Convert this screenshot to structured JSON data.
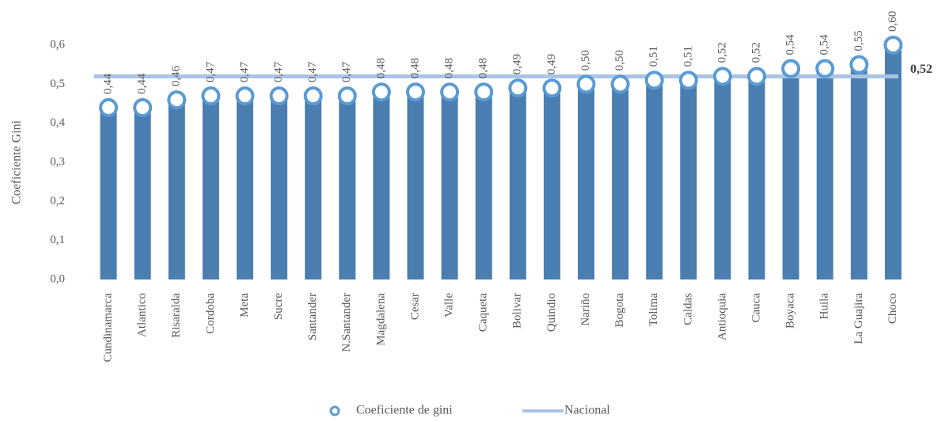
{
  "chart_data": {
    "type": "bar",
    "ylabel": "Coeficiente Gini",
    "categories": [
      "Cundinamarca",
      "Atlantico",
      "Risaralda",
      "Cordoba",
      "Meta",
      "Sucre",
      "Santander",
      "N.Santander",
      "Magdalena",
      "Cesar",
      "Valle",
      "Caqueta",
      "Bolivar",
      "Quindio",
      "Nariño",
      "Bogota",
      "Tolima",
      "Caldas",
      "Antioquia",
      "Cauca",
      "Boyaca",
      "Huila",
      "La Guajira",
      "Choco"
    ],
    "series": [
      {
        "name": "Coeficiente de gini",
        "color": "#4a7eb0",
        "marker_color": "#5b9bd5",
        "values": [
          0.44,
          0.44,
          0.46,
          0.47,
          0.47,
          0.47,
          0.47,
          0.47,
          0.48,
          0.48,
          0.48,
          0.48,
          0.49,
          0.49,
          0.5,
          0.5,
          0.51,
          0.51,
          0.52,
          0.52,
          0.54,
          0.54,
          0.55,
          0.6
        ],
        "value_labels": [
          "0,44",
          "0,44",
          "0,46",
          "0,47",
          "0,47",
          "0,47",
          "0,47",
          "0,47",
          "0,48",
          "0,48",
          "0,48",
          "0,48",
          "0,49",
          "0,49",
          "0,50",
          "0,50",
          "0,51",
          "0,51",
          "0,52",
          "0,52",
          "0,54",
          "0,54",
          "0,55",
          "0,60"
        ]
      }
    ],
    "reference": {
      "name": "Nacional",
      "value": 0.52,
      "label": "0,52",
      "color": "#a9c4e4"
    },
    "ylim": [
      0,
      0.6
    ],
    "yticks": [
      {
        "value": 0,
        "label": "0,0"
      },
      {
        "value": 0.1,
        "label": "0,1"
      },
      {
        "value": 0.2,
        "label": "0,2"
      },
      {
        "value": 0.3,
        "label": "0,3"
      },
      {
        "value": 0.4,
        "label": "0,4"
      },
      {
        "value": 0.5,
        "label": "0,5"
      },
      {
        "value": 0.6,
        "label": "0,6"
      }
    ]
  }
}
